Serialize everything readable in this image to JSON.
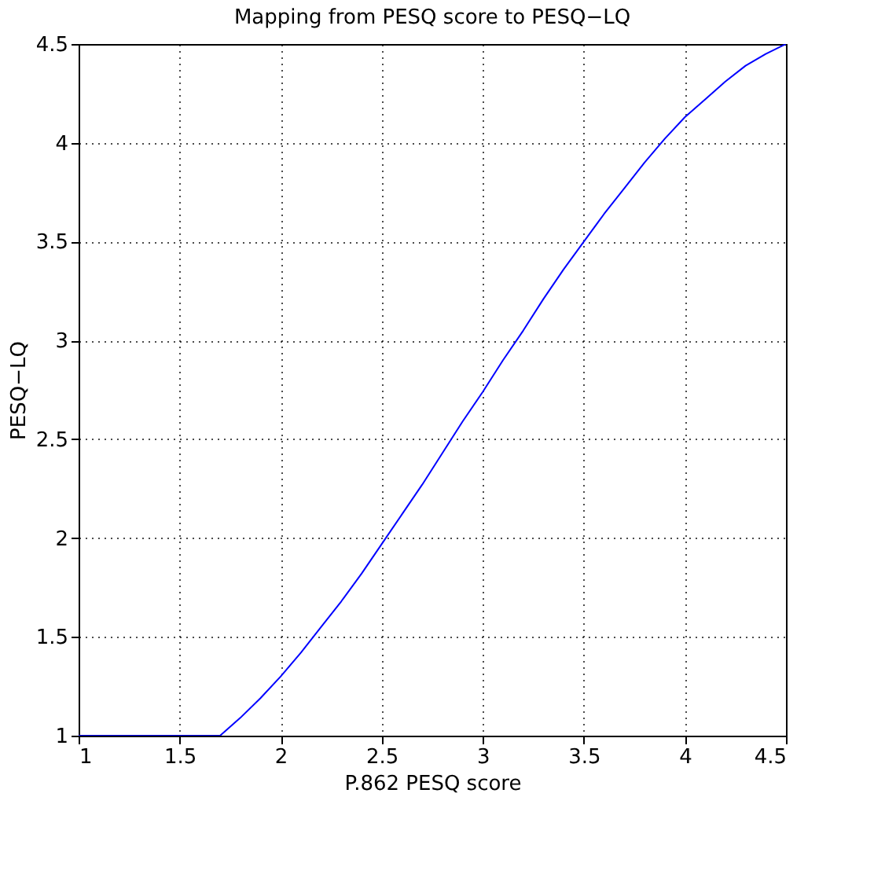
{
  "chart_data": {
    "type": "line",
    "title": "Mapping from PESQ score to PESQ−LQ",
    "xlabel": "P.862 PESQ score",
    "ylabel": "PESQ−LQ",
    "x": [
      1,
      1.7,
      1.8,
      1.9,
      2.0,
      2.1,
      2.2,
      2.3,
      2.4,
      2.5,
      2.6,
      2.7,
      2.8,
      2.9,
      3.0,
      3.1,
      3.2,
      3.3,
      3.4,
      3.5,
      3.6,
      3.7,
      3.8,
      3.9,
      4.0,
      4.1,
      4.2,
      4.3,
      4.4,
      4.5
    ],
    "series": [
      {
        "color": "#0000ff",
        "values": [
          1,
          1,
          1.09,
          1.19,
          1.3,
          1.42,
          1.55,
          1.68,
          1.82,
          1.97,
          2.12,
          2.27,
          2.43,
          2.59,
          2.74,
          2.9,
          3.05,
          3.21,
          3.36,
          3.5,
          3.64,
          3.77,
          3.9,
          4.02,
          4.13,
          4.22,
          4.31,
          4.39,
          4.45,
          4.5
        ]
      }
    ],
    "xlim": [
      1,
      4.5
    ],
    "ylim": [
      1,
      4.5
    ],
    "xticks": [
      1,
      1.5,
      2,
      2.5,
      3,
      3.5,
      4,
      4.5
    ],
    "yticks": [
      1,
      1.5,
      2,
      2.5,
      3,
      3.5,
      4,
      4.5
    ],
    "grid": true,
    "line_style": "solid",
    "marker": "none"
  }
}
